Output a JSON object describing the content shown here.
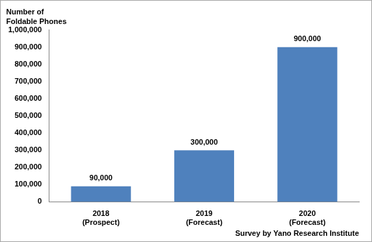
{
  "chart_data": {
    "type": "bar",
    "y_label": "Number of\nFoldable Phones",
    "annotation": "Survey by Yano Research Institute",
    "categories": [
      "2018\n(Prospect)",
      "2019\n(Forecast)",
      "2020\n(Forecast)"
    ],
    "values": [
      90000,
      300000,
      900000
    ],
    "value_labels": [
      "90,000",
      "300,000",
      "900,000"
    ],
    "data_labels": true,
    "color": "#4f81bd",
    "ylim": [
      0,
      1000000
    ],
    "yticks": [
      0,
      {
        "value": 100000,
        "label": "100,000"
      },
      {
        "value": 200000,
        "label": "200,000"
      },
      {
        "value": 300000,
        "label": "300,000"
      },
      {
        "value": 400000,
        "label": "400,000"
      },
      {
        "value": 500000,
        "label": "500,000"
      },
      {
        "value": 600000,
        "label": "600,000"
      },
      {
        "value": 700000,
        "label": "700,000"
      },
      {
        "value": 800000,
        "label": "800,000"
      },
      {
        "value": 900000,
        "label": "900,000"
      },
      {
        "value": 1000000,
        "label": "1,000,000"
      }
    ],
    "grid": false
  }
}
